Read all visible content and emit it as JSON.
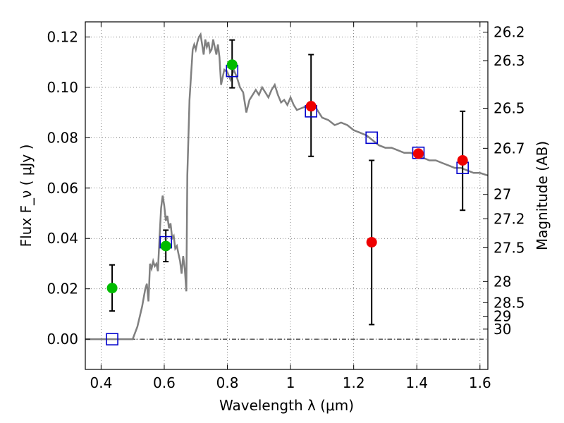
{
  "chart_data": {
    "type": "scatter",
    "title": "",
    "xlabel": "Wavelength  λ (μm)",
    "ylabel": "Flux  F_ν  ( μJy )",
    "ylabel_right": "Magnitude (AB)",
    "xlim": [
      0.35,
      1.625
    ],
    "ylim": [
      -0.012,
      0.126
    ],
    "x_ticks": [
      0.4,
      0.6,
      0.8,
      1.0,
      1.2,
      1.4,
      1.6
    ],
    "x_tick_labels": [
      "0.4",
      "0.6",
      "0.8",
      "1",
      "1.2",
      "1.4",
      "1.6"
    ],
    "y_ticks": [
      0.0,
      0.02,
      0.04,
      0.06,
      0.08,
      0.1,
      0.12
    ],
    "y_tick_labels": [
      "0.00",
      "0.02",
      "0.04",
      "0.06",
      "0.08",
      "0.10",
      "0.12"
    ],
    "right_ticks": [
      {
        "flux": 0.1219,
        "label": "26.2"
      },
      {
        "flux": 0.1106,
        "label": "26.3"
      },
      {
        "flux": 0.0917,
        "label": "26.5"
      },
      {
        "flux": 0.0758,
        "label": "26.7"
      },
      {
        "flux": 0.0575,
        "label": "27"
      },
      {
        "flux": 0.0478,
        "label": "27.2"
      },
      {
        "flux": 0.0363,
        "label": "27.5"
      },
      {
        "flux": 0.0229,
        "label": "28"
      },
      {
        "flux": 0.0145,
        "label": "28.5"
      },
      {
        "flux": 0.0091,
        "label": "29"
      },
      {
        "flux": 0.004,
        "label": "30"
      }
    ],
    "grid": true,
    "series": [
      {
        "kind": "line",
        "color": "#808080",
        "points": [
          [
            0.35,
            0.0
          ],
          [
            0.5,
            0.0
          ],
          [
            0.515,
            0.005
          ],
          [
            0.53,
            0.013
          ],
          [
            0.54,
            0.02
          ],
          [
            0.545,
            0.022
          ],
          [
            0.55,
            0.015
          ],
          [
            0.555,
            0.03
          ],
          [
            0.56,
            0.028
          ],
          [
            0.565,
            0.031
          ],
          [
            0.57,
            0.029
          ],
          [
            0.575,
            0.03
          ],
          [
            0.58,
            0.027
          ],
          [
            0.585,
            0.04
          ],
          [
            0.59,
            0.052
          ],
          [
            0.595,
            0.057
          ],
          [
            0.6,
            0.053
          ],
          [
            0.605,
            0.047
          ],
          [
            0.61,
            0.049
          ],
          [
            0.615,
            0.044
          ],
          [
            0.62,
            0.046
          ],
          [
            0.625,
            0.04
          ],
          [
            0.63,
            0.041
          ],
          [
            0.635,
            0.036
          ],
          [
            0.64,
            0.037
          ],
          [
            0.645,
            0.034
          ],
          [
            0.65,
            0.031
          ],
          [
            0.655,
            0.026
          ],
          [
            0.66,
            0.033
          ],
          [
            0.665,
            0.028
          ],
          [
            0.67,
            0.019
          ],
          [
            0.673,
            0.065
          ],
          [
            0.68,
            0.095
          ],
          [
            0.69,
            0.115
          ],
          [
            0.695,
            0.117
          ],
          [
            0.7,
            0.115
          ],
          [
            0.705,
            0.118
          ],
          [
            0.71,
            0.12
          ],
          [
            0.715,
            0.121
          ],
          [
            0.72,
            0.117
          ],
          [
            0.725,
            0.113
          ],
          [
            0.73,
            0.119
          ],
          [
            0.735,
            0.116
          ],
          [
            0.74,
            0.118
          ],
          [
            0.745,
            0.114
          ],
          [
            0.75,
            0.115
          ],
          [
            0.755,
            0.119
          ],
          [
            0.76,
            0.116
          ],
          [
            0.765,
            0.113
          ],
          [
            0.77,
            0.117
          ],
          [
            0.775,
            0.112
          ],
          [
            0.78,
            0.101
          ],
          [
            0.79,
            0.107
          ],
          [
            0.8,
            0.106
          ],
          [
            0.81,
            0.103
          ],
          [
            0.82,
            0.107
          ],
          [
            0.83,
            0.104
          ],
          [
            0.84,
            0.1
          ],
          [
            0.85,
            0.098
          ],
          [
            0.86,
            0.09
          ],
          [
            0.87,
            0.095
          ],
          [
            0.88,
            0.097
          ],
          [
            0.89,
            0.099
          ],
          [
            0.9,
            0.097
          ],
          [
            0.91,
            0.1
          ],
          [
            0.92,
            0.098
          ],
          [
            0.93,
            0.096
          ],
          [
            0.94,
            0.099
          ],
          [
            0.95,
            0.101
          ],
          [
            0.96,
            0.097
          ],
          [
            0.97,
            0.094
          ],
          [
            0.98,
            0.095
          ],
          [
            0.99,
            0.093
          ],
          [
            1.0,
            0.096
          ],
          [
            1.01,
            0.093
          ],
          [
            1.02,
            0.091
          ],
          [
            1.04,
            0.092
          ],
          [
            1.06,
            0.093
          ],
          [
            1.08,
            0.092
          ],
          [
            1.1,
            0.088
          ],
          [
            1.12,
            0.087
          ],
          [
            1.14,
            0.085
          ],
          [
            1.16,
            0.086
          ],
          [
            1.18,
            0.085
          ],
          [
            1.2,
            0.083
          ],
          [
            1.22,
            0.082
          ],
          [
            1.24,
            0.081
          ],
          [
            1.26,
            0.079
          ],
          [
            1.28,
            0.077
          ],
          [
            1.3,
            0.076
          ],
          [
            1.32,
            0.076
          ],
          [
            1.34,
            0.075
          ],
          [
            1.36,
            0.074
          ],
          [
            1.38,
            0.074
          ],
          [
            1.4,
            0.073
          ],
          [
            1.42,
            0.072
          ],
          [
            1.44,
            0.071
          ],
          [
            1.46,
            0.071
          ],
          [
            1.48,
            0.07
          ],
          [
            1.5,
            0.069
          ],
          [
            1.52,
            0.068
          ],
          [
            1.54,
            0.068
          ],
          [
            1.56,
            0.067
          ],
          [
            1.58,
            0.066
          ],
          [
            1.6,
            0.066
          ],
          [
            1.625,
            0.065
          ]
        ]
      },
      {
        "kind": "errorbar",
        "color": "#000000",
        "points": [
          {
            "x": 0.435,
            "ylo": 0.0112,
            "yhi": 0.0295
          },
          {
            "x": 0.605,
            "ylo": 0.0308,
            "yhi": 0.0433
          },
          {
            "x": 0.815,
            "ylo": 0.0998,
            "yhi": 0.1188
          },
          {
            "x": 1.065,
            "ylo": 0.0726,
            "yhi": 0.113
          },
          {
            "x": 1.257,
            "ylo": 0.0058,
            "yhi": 0.071
          },
          {
            "x": 1.545,
            "ylo": 0.0512,
            "yhi": 0.0905
          }
        ]
      },
      {
        "kind": "square",
        "color": "#0000cc",
        "points": [
          [
            0.435,
            0.0
          ],
          [
            0.605,
            0.0385
          ],
          [
            0.815,
            0.1065
          ],
          [
            1.065,
            0.0905
          ],
          [
            1.257,
            0.08
          ],
          [
            1.405,
            0.074
          ],
          [
            1.545,
            0.068
          ]
        ]
      },
      {
        "kind": "circle",
        "color": "#00bb00",
        "points": [
          [
            0.435,
            0.0203
          ],
          [
            0.605,
            0.037
          ],
          [
            0.815,
            0.109
          ]
        ]
      },
      {
        "kind": "circle",
        "color": "#ee0000",
        "points": [
          [
            1.065,
            0.0925
          ],
          [
            1.257,
            0.0385
          ],
          [
            1.405,
            0.0737
          ],
          [
            1.545,
            0.071
          ]
        ]
      }
    ]
  }
}
